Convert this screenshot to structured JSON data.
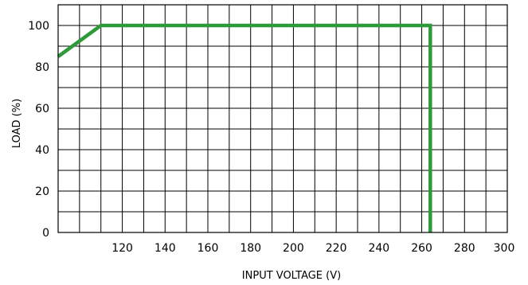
{
  "chart_data": {
    "type": "line",
    "title": "",
    "xlabel": "INPUT VOLTAGE (V)",
    "ylabel": "LOAD (%)",
    "xlim": [
      90,
      300
    ],
    "ylim": [
      0,
      110
    ],
    "x_ticks": [
      120,
      140,
      160,
      180,
      200,
      220,
      240,
      260,
      280,
      300
    ],
    "y_ticks": [
      0,
      20,
      40,
      60,
      80,
      100
    ],
    "x_tick_labels": [
      "120",
      "140",
      "160",
      "180",
      "200",
      "220",
      "240",
      "260",
      "280",
      "300"
    ],
    "y_tick_labels": [
      "0",
      "20",
      "40",
      "60",
      "80",
      "100"
    ],
    "grid": true,
    "x_grid_step": 10,
    "y_grid_step": 10,
    "series": [
      {
        "color": "#2e9a3a",
        "points": [
          [
            90,
            85
          ],
          [
            110,
            100
          ],
          [
            264,
            100
          ],
          [
            264,
            0
          ]
        ]
      }
    ]
  }
}
